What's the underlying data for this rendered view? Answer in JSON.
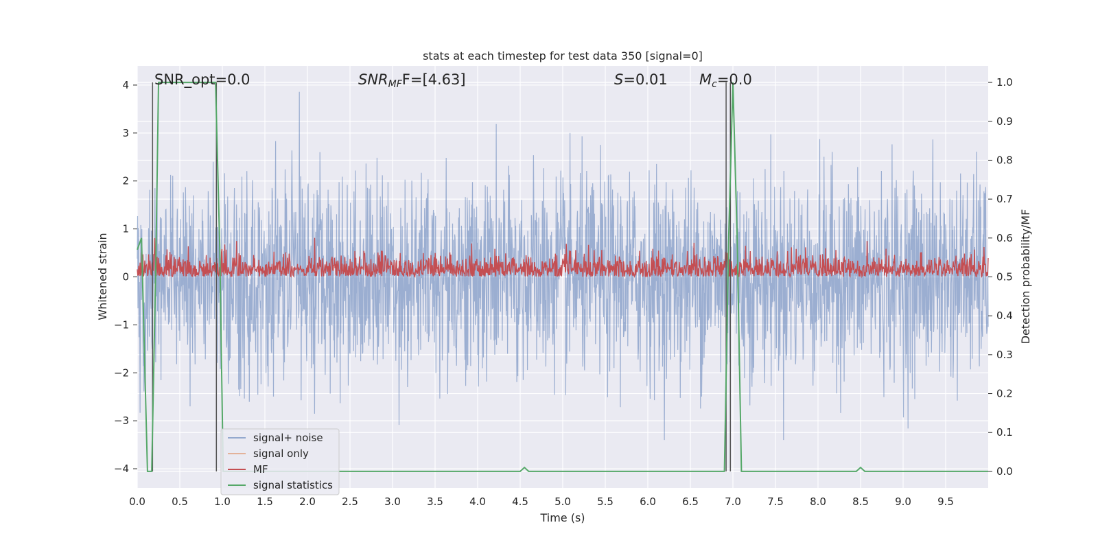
{
  "chart_data": {
    "type": "line",
    "title": "stats at each timestep for test data 350 [signal=0]",
    "xlabel": "Time (s)",
    "ylabel": "Whitened strain",
    "y2label": "Detection probability/MF",
    "xlim": [
      0,
      10
    ],
    "ylim": [
      -4.4,
      4.4
    ],
    "y2lim": [
      -0.0425,
      1.0425
    ],
    "x_ticks": [
      "0.0",
      "0.5",
      "1.0",
      "1.5",
      "2.0",
      "2.5",
      "3.0",
      "3.5",
      "4.0",
      "4.5",
      "5.0",
      "5.5",
      "6.0",
      "6.5",
      "7.0",
      "7.5",
      "8.0",
      "8.5",
      "9.0",
      "9.5"
    ],
    "y_ticks": [
      "4",
      "3",
      "2",
      "1",
      "0",
      "−1",
      "−2",
      "−3",
      "−4"
    ],
    "y2_ticks": [
      "1.0",
      "0.9",
      "0.8",
      "0.7",
      "0.6",
      "0.5",
      "0.4",
      "0.3",
      "0.2",
      "0.1",
      "0.0"
    ],
    "grid": true,
    "legend_position": "bottom-left",
    "annotations": {
      "snr_opt": "SNR_opt=0.0",
      "snr_mf_main": "SNR",
      "snr_mf_sub": "MF",
      "snr_mf_rest": "F=[4.63]",
      "s_main": "S",
      "s_rest": "=0.01",
      "mc_main": "M",
      "mc_sub": "c",
      "mc_rest": "=0.0"
    },
    "series": [
      {
        "name": "signal+ noise",
        "color": "#4c72b0",
        "axis": "left",
        "envelope": "dense noise, roughly between -3.4 and 4.0"
      },
      {
        "name": "signal only",
        "color": "#dd8452",
        "axis": "left",
        "values": []
      },
      {
        "name": "MF",
        "color": "#c44e52",
        "axis": "right",
        "envelope": "dense trace, roughly between 0.5 and 0.6"
      },
      {
        "name": "signal statistics",
        "color": "#55a868",
        "axis": "right",
        "x": [
          0,
          0.05,
          0.12,
          0.17,
          0.22,
          0.25,
          0.92,
          0.97,
          1.01,
          4.45,
          4.5,
          4.55,
          4.6,
          4.65,
          6.9,
          6.95,
          7.0,
          7.05,
          7.1,
          7.12,
          8.4,
          8.45,
          8.5,
          8.55,
          8.65,
          10
        ],
        "y": [
          0.57,
          0.6,
          0.0,
          0.0,
          0.56,
          1.0,
          1.0,
          0.57,
          0.0,
          0.0,
          0.0,
          0.01,
          0.0,
          0.0,
          0.0,
          0.6,
          1.0,
          0.6,
          0.0,
          0.0,
          0.0,
          0.0,
          0.01,
          0.0,
          0.0,
          0.0
        ]
      }
    ],
    "vertical_lines_x": [
      0.18,
      0.93,
      6.92,
      6.97
    ],
    "legend": [
      "signal+ noise",
      "signal only",
      "MF",
      "signal statistics"
    ]
  }
}
